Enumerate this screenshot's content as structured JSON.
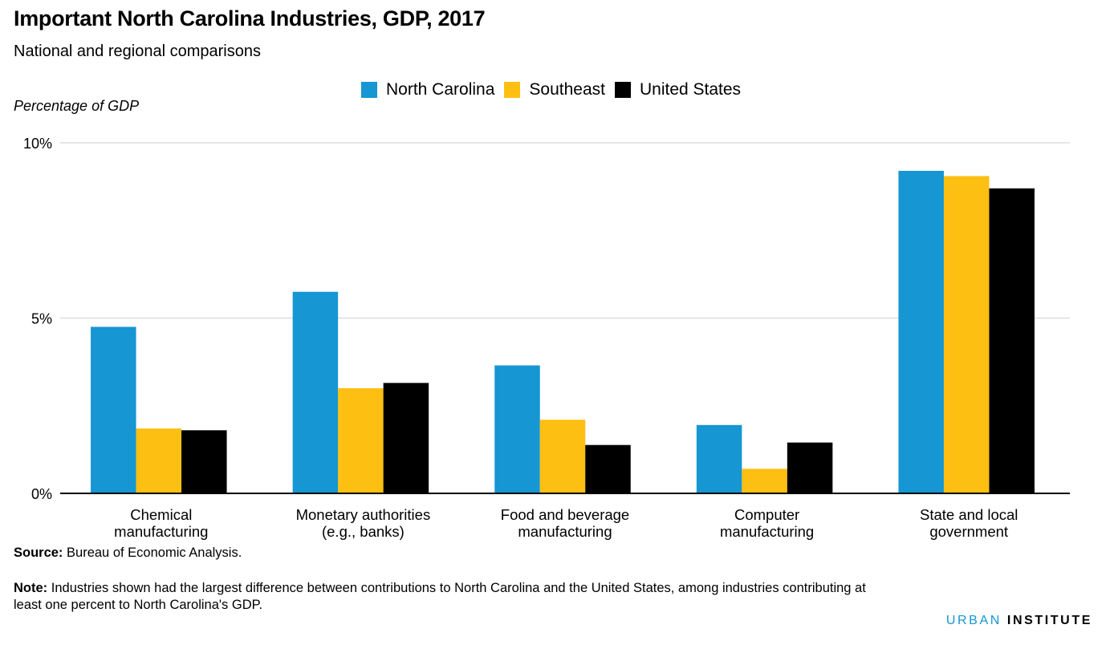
{
  "title": "Important North Carolina Industries, GDP, 2017",
  "subtitle": "National and regional comparisons",
  "source_label": "Source:",
  "source_text": "Bureau of Economic Analysis.",
  "note_label": "Note:",
  "note_text": "Industries shown had the largest difference between contributions to North Carolina and the United States, among industries contributing at least one percent to North Carolina's GDP.",
  "brand": {
    "part1": "URBAN",
    "part2": "INSTITUTE"
  },
  "colors": {
    "north_carolina": "#1696d2",
    "southeast": "#fdbf11",
    "united_states": "#000000",
    "gridline": "#dedede",
    "baseline": "#000000"
  },
  "chart_data": {
    "type": "bar",
    "title": "Important North Carolina Industries, GDP, 2017",
    "subtitle": "National and regional comparisons",
    "xlabel": "",
    "ylabel": "Percentage of GDP",
    "ylim": [
      0,
      10
    ],
    "yticks": [
      {
        "value": 0,
        "label": "0%"
      },
      {
        "value": 5,
        "label": "5%"
      },
      {
        "value": 10,
        "label": "10%"
      }
    ],
    "grid": true,
    "legend_position": "top-center",
    "categories": [
      [
        "Chemical",
        "manufacturing"
      ],
      [
        "Monetary authorities",
        "(e.g., banks)"
      ],
      [
        "Food and beverage",
        "manufacturing"
      ],
      [
        "Computer",
        "manufacturing"
      ],
      [
        "State and local",
        "government"
      ]
    ],
    "series": [
      {
        "name": "North Carolina",
        "color": "#1696d2",
        "values": [
          4.75,
          5.75,
          3.65,
          1.95,
          9.2
        ]
      },
      {
        "name": "Southeast",
        "color": "#fdbf11",
        "values": [
          1.85,
          3.0,
          2.1,
          0.7,
          9.05
        ]
      },
      {
        "name": "United States",
        "color": "#000000",
        "values": [
          1.8,
          3.15,
          1.38,
          1.45,
          8.7
        ]
      }
    ]
  }
}
